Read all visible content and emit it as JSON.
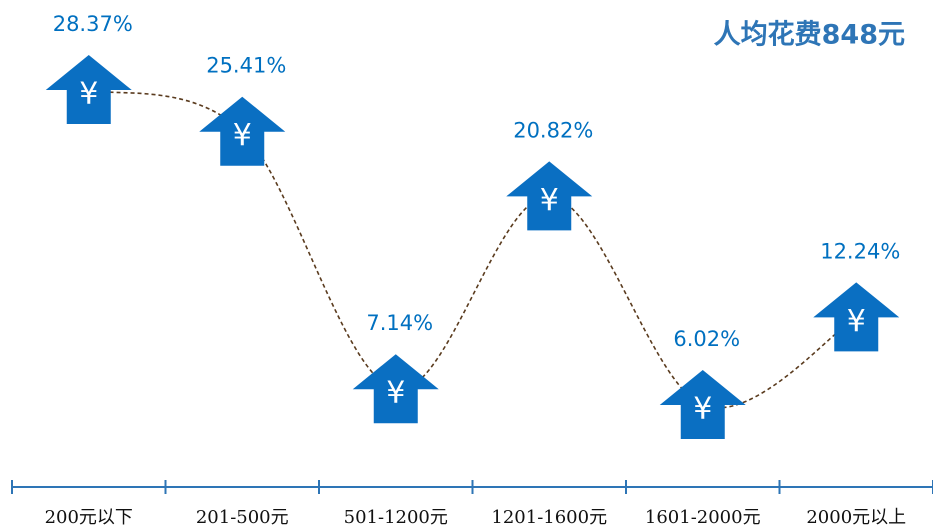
{
  "chart_data": {
    "type": "line",
    "title": "人均花费848元",
    "categories": [
      "200元以下",
      "201-500元",
      "501-1200元",
      "1201-1600元",
      "1601-2000元",
      "2000元以上"
    ],
    "values": [
      28.37,
      25.41,
      7.14,
      20.82,
      6.02,
      12.24
    ],
    "value_labels": [
      "28.37%",
      "25.41%",
      "7.14%",
      "20.82%",
      "6.02%",
      "12.24%"
    ],
    "marker_symbol": "¥",
    "color": "#0a6fc2",
    "line_color": "#5a3b1e"
  }
}
